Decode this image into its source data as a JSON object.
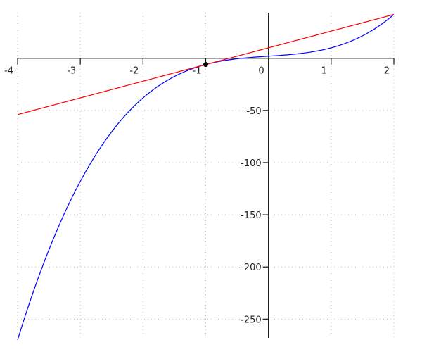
{
  "chart_data": {
    "type": "line",
    "title": "",
    "xlabel": "",
    "ylabel": "",
    "xlim": [
      -4,
      2
    ],
    "ylim": [
      -268,
      43
    ],
    "grid": true,
    "x_ticks": [
      -4,
      -3,
      -2,
      -1,
      0,
      1,
      2
    ],
    "x_tick_labels": [
      "-4",
      "-3",
      "-2",
      "-1",
      "0",
      "1",
      "2"
    ],
    "y_ticks": [
      -50,
      -100,
      -150,
      -200,
      -250
    ],
    "y_tick_labels": [
      "-50",
      "-100",
      "-150",
      "-200",
      "-250"
    ],
    "series": [
      {
        "kind": "curve",
        "expression": "4x^3 + 4x + 2",
        "coefficients": [
          4,
          0,
          4,
          2
        ],
        "x_range": [
          -4,
          2
        ],
        "color": "#0000ff"
      },
      {
        "kind": "tangent-line",
        "expression": "16x + 10",
        "coefficients": [
          16,
          10
        ],
        "x_range": [
          -4,
          2
        ],
        "color": "#ff0000"
      }
    ],
    "points": [
      {
        "x": -1,
        "y": -6,
        "color": "#000000"
      }
    ]
  }
}
